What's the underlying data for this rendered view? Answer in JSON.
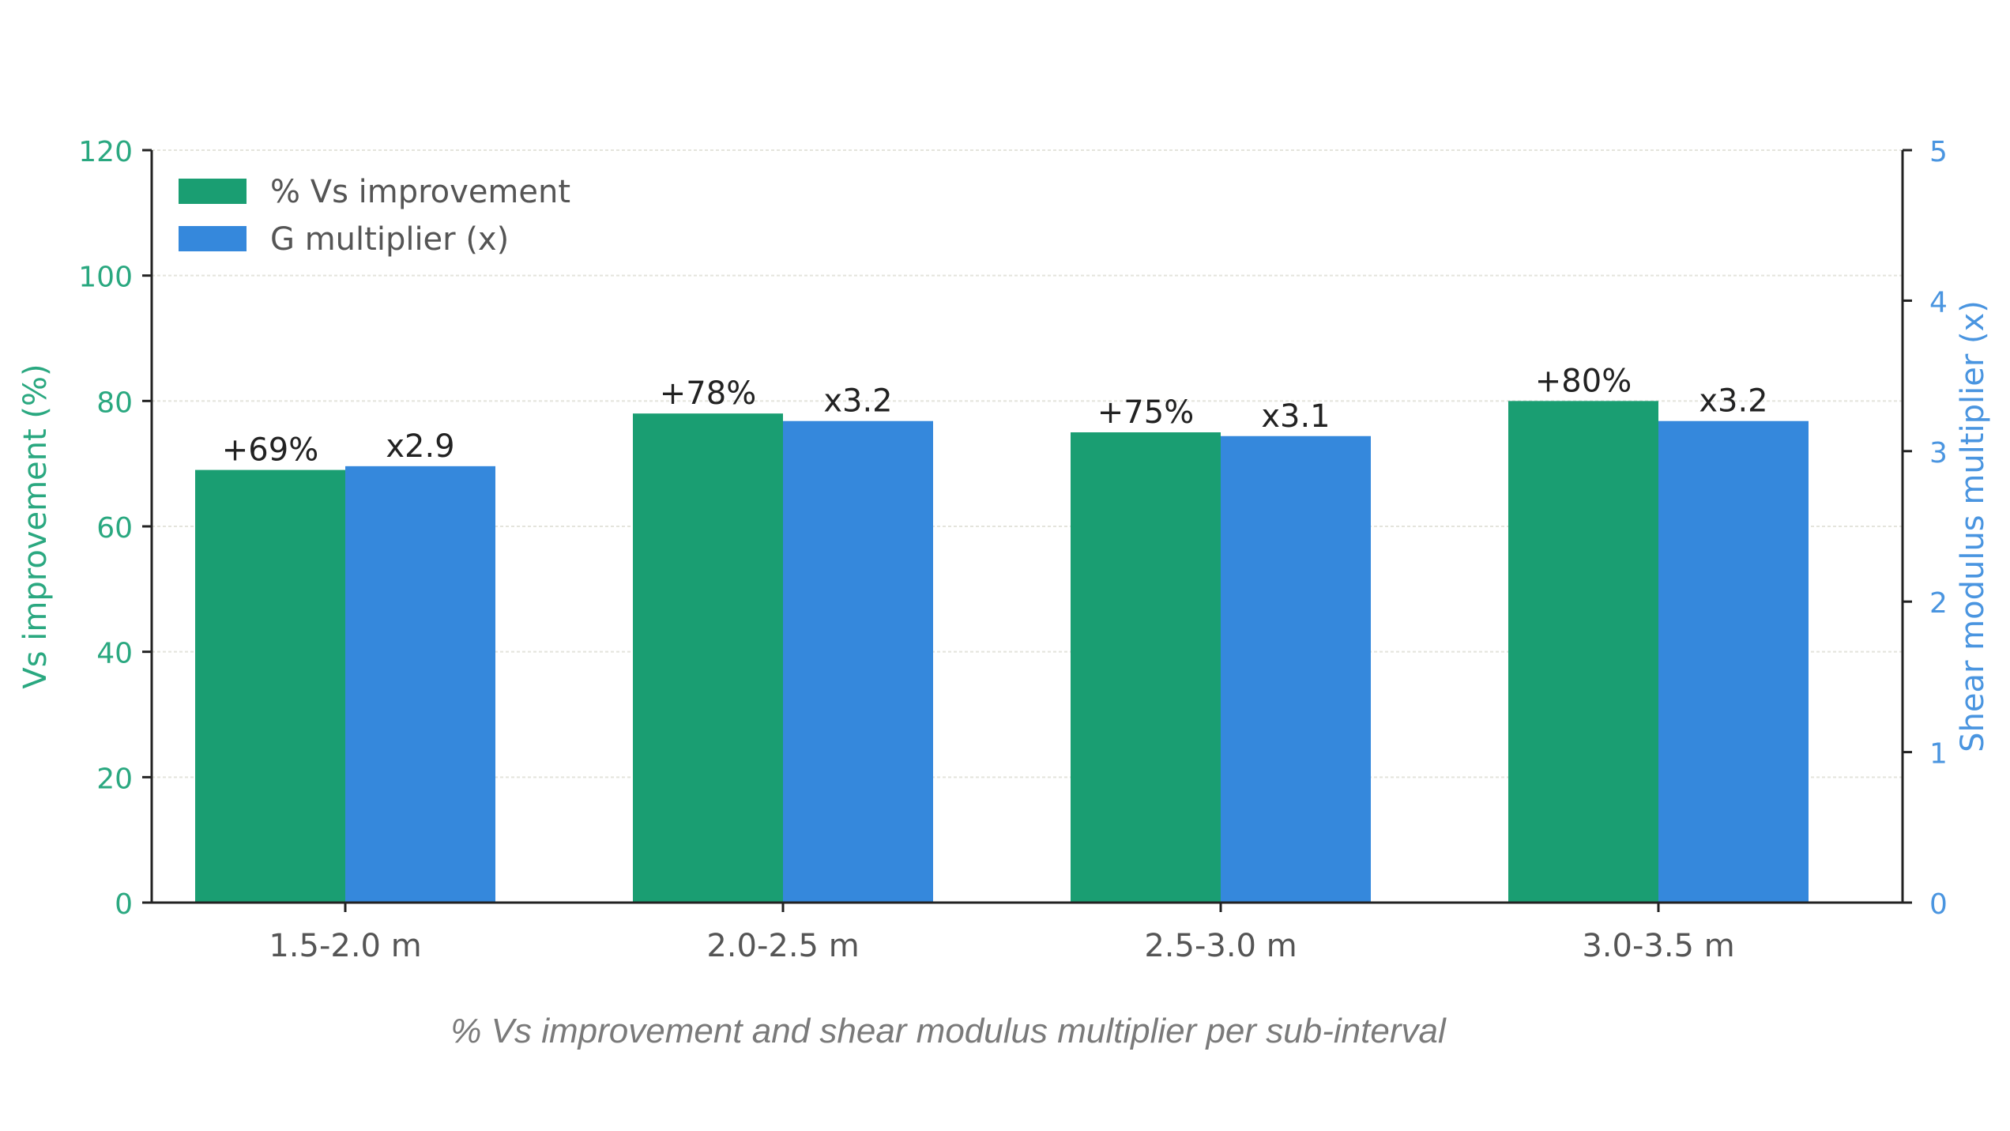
{
  "chart_data": {
    "type": "bar",
    "title": "",
    "caption": "% Vs improvement and shear modulus multiplier per sub-interval",
    "categories": [
      "1.5-2.0 m",
      "2.0-2.5 m",
      "2.5-3.0 m",
      "3.0-3.5 m"
    ],
    "xlabel": "",
    "ylabel_left": "Vs improvement (%)",
    "ylabel_right": "Shear modulus multiplier (x)",
    "ylim_left": [
      0,
      120
    ],
    "ylim_right": [
      0,
      5
    ],
    "yticks_left": [
      "0",
      "20",
      "40",
      "60",
      "80",
      "100",
      "120"
    ],
    "yticks_right": [
      "0",
      "1",
      "2",
      "3",
      "4",
      "5"
    ],
    "grid": true,
    "legend_position": "top-left",
    "series": [
      {
        "name": "% Vs improvement",
        "axis": "left",
        "color": "#1a9e72",
        "values": [
          69,
          78,
          75,
          80
        ],
        "labels": [
          "+69%",
          "+78%",
          "+75%",
          "+80%"
        ]
      },
      {
        "name": "G multiplier (x)",
        "axis": "right",
        "color": "#3588dc",
        "values": [
          2.9,
          3.2,
          3.1,
          3.2
        ],
        "labels": [
          "x2.9",
          "x3.2",
          "x3.1",
          "x3.2"
        ]
      }
    ],
    "colors": {
      "left_axis": "#2aa880",
      "right_axis": "#4a95e0",
      "grid": "#e4e4dc",
      "tick_label": "#555555",
      "bar_label": "#222222"
    }
  }
}
